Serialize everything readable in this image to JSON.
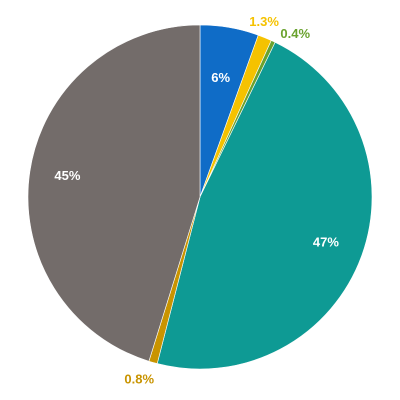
{
  "chart_data": {
    "type": "pie",
    "start_angle_deg": 0,
    "direction": "clockwise",
    "grid": false,
    "legend": "none",
    "slices": [
      {
        "label": "6%",
        "value": 5.5,
        "color": "#0f6cc7",
        "label_color": "#ffffff",
        "label_position": "inside"
      },
      {
        "label": "1.3%",
        "value": 1.3,
        "color": "#f5c200",
        "label_color": "#f5c200",
        "label_position": "outside"
      },
      {
        "label": "0.4%",
        "value": 0.4,
        "color": "#6aa22e",
        "label_color": "#6aa22e",
        "label_position": "outside"
      },
      {
        "label": "47%",
        "value": 46.8,
        "color": "#0e9a94",
        "label_color": "#ffffff",
        "label_position": "inside"
      },
      {
        "label": "0.8%",
        "value": 0.8,
        "color": "#c99400",
        "label_color": "#c99400",
        "label_position": "outside"
      },
      {
        "label": "45%",
        "value": 45.2,
        "color": "#736c6a",
        "label_color": "#ffffff",
        "label_position": "inside"
      }
    ]
  }
}
